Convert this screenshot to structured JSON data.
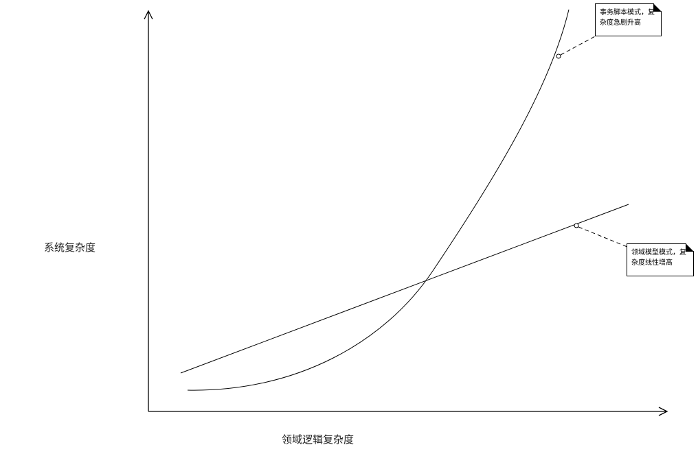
{
  "axes": {
    "y_label": "系统复杂度",
    "x_label": "领域逻辑复杂度"
  },
  "curves": {
    "transaction_script": "exponential",
    "domain_model": "linear"
  },
  "notes": {
    "transaction_script": {
      "line1": "事务脚本模式，复",
      "line2": "杂度急剧升高"
    },
    "domain_model": {
      "line1": "领域模型模式，复",
      "line2": "杂度线性增高"
    }
  },
  "colors": {
    "line": "#000000",
    "background": "#ffffff"
  }
}
